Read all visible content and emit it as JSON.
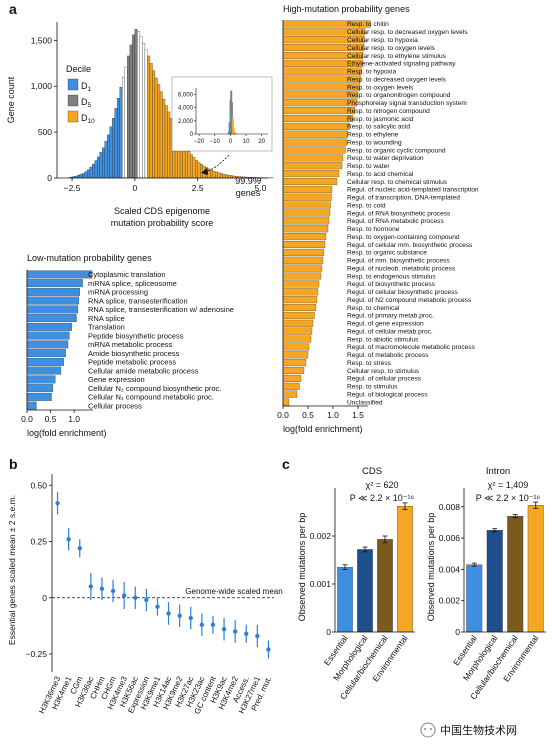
{
  "panel_labels": {
    "a": "a",
    "b": "b",
    "c": "c"
  },
  "watermark": "中国生物技术网",
  "colors": {
    "blue": "#3f8fe0",
    "grey": "#7f7f7f",
    "orange": "#f5a623",
    "darkblue": "#1f4e8c",
    "brown": "#7a5a1e",
    "errorbar": "#2f7fd6"
  },
  "chart_data": [
    {
      "type": "bar",
      "id": "histogram",
      "xlabel": "Scaled CDS epigenome mutation probability score",
      "ylabel": "Gene count",
      "xticks": [
        -2.5,
        0,
        2.5,
        5.0
      ],
      "xtick_labels": [
        "−2.5",
        "0",
        "2.5",
        "5.0"
      ],
      "yticks": [
        0,
        500,
        1000,
        1500
      ],
      "ytick_labels": [
        "0",
        "500",
        "1,000",
        "1,500"
      ],
      "xlim": [
        -3.1,
        5.3
      ],
      "ylim": [
        0,
        1700
      ],
      "bin_width": 0.1,
      "bins_start": -2.6,
      "counts": [
        10,
        15,
        20,
        30,
        40,
        50,
        70,
        90,
        120,
        150,
        190,
        230,
        280,
        330,
        400,
        470,
        560,
        650,
        760,
        870,
        990,
        1100,
        1210,
        1330,
        1450,
        1560,
        1620,
        1600,
        1540,
        1470,
        1400,
        1330,
        1250,
        1170,
        1090,
        1020,
        940,
        860,
        790,
        720,
        650,
        590,
        530,
        470,
        420,
        370,
        330,
        290,
        255,
        225,
        195,
        170,
        150,
        130,
        115,
        100,
        88,
        76,
        66,
        57,
        49,
        42,
        36,
        31,
        26,
        22,
        19,
        16,
        14,
        12,
        10,
        9,
        8,
        7,
        6,
        5,
        4,
        4,
        3,
        3,
        2
      ],
      "legend_title": "Decile",
      "legend_items": [
        "D1",
        "D5",
        "D10"
      ],
      "d1_max": -0.5,
      "d5_range": [
        -0.3,
        0.1
      ],
      "d10_min": 0.5,
      "inset": {
        "xticks": [
          -20,
          -10,
          0,
          10,
          20
        ],
        "xtick_labels": [
          "−20",
          "−10",
          "0",
          "10",
          "20"
        ],
        "yticks": [
          0,
          2000,
          4000,
          6000
        ],
        "ytick_labels": [
          "0",
          "2,000",
          "4,000",
          "6,000"
        ],
        "xlim": [
          -22,
          24
        ],
        "ylim": [
          0,
          7000
        ],
        "values_x": [
          -1.5,
          -1,
          -0.5,
          0,
          0.5,
          1,
          1.5,
          2,
          2.5,
          3
        ],
        "values_y": [
          300,
          1800,
          5200,
          6600,
          4800,
          2400,
          900,
          300,
          120,
          60
        ]
      },
      "annotation": "99.9% genes"
    },
    {
      "type": "bar",
      "id": "high-mutation",
      "orientation": "horizontal",
      "title": "High-mutation probability genes",
      "xlabel": "log(fold enrichment)",
      "xticks": [
        0,
        0.5,
        1.0,
        1.5
      ],
      "xtick_labels": [
        "0.0",
        "0.5",
        "1.0",
        "1.5"
      ],
      "xlim": [
        0,
        1.7
      ],
      "categories": [
        "Resp. to chitin",
        "Cellular resp. to decreased oxygen levels",
        "Cellular resp. to hypoxia",
        "Cellular resp. to oxygen levels",
        "Cellular resp. to ethylene stimulus",
        "Ethylene-activated signaling pathway",
        "Resp. to hypoxia",
        "Resp. to decreased oxygen levels",
        "Resp. to oxygen levels",
        "Resp. to organonitrogen compound",
        "Phosphorelay signal transduction system",
        "Resp. to nitrogen compound",
        "Resp. to jasmonic acid",
        "Resp. to salicylic acid",
        "Resp. to ethylene",
        "Resp. to wounding",
        "Resp. to organic cyclic compound",
        "Resp. to water deprivation",
        "Resp. to water",
        "Resp. to acid chemical",
        "Cellular resp. to chemical stimulus",
        "Regul. of nucleic acid-templated transcription",
        "Regul. of transcription, DNA-templated",
        "Resp. to cold",
        "Regul. of RNA biosynthetic process",
        "Regul. of RNA metabolic process",
        "Resp. to hormone",
        "Resp. to oxygen-containing compound",
        "Regul. of cellular mm. biosynthetic process",
        "Resp. to organic substance",
        "Regul. of mm. biosynthetic process",
        "Regul. of nucleob. metabolic process",
        "Resp. to endogenous stimulus",
        "Regul. of biosynthetic process",
        "Regul. of cellular biosynthetic process",
        "Regul. of N2 compound metabolic process",
        "Resp. to chemical",
        "Regul. of primary metab.proc.",
        "Regul. of gene expression",
        "Regul. of cellular metab.proc.",
        "Resp. to abiotic stimulus",
        "Regul. of macromolecule metabolic process",
        "Regul. of metabolic process",
        "Resp. to stress",
        "Cellular resp. to stimulus",
        "Regul. of cellular process",
        "Resp. to stimulus",
        "Regul. of biological process",
        "Unclassified"
      ],
      "values": [
        1.75,
        1.64,
        1.63,
        1.62,
        1.6,
        1.6,
        1.57,
        1.55,
        1.54,
        1.5,
        1.48,
        1.44,
        1.4,
        1.33,
        1.3,
        1.28,
        1.25,
        1.2,
        1.18,
        1.12,
        1.08,
        0.98,
        0.97,
        0.95,
        0.94,
        0.92,
        0.9,
        0.86,
        0.84,
        0.82,
        0.8,
        0.78,
        0.76,
        0.72,
        0.7,
        0.68,
        0.66,
        0.63,
        0.6,
        0.58,
        0.56,
        0.52,
        0.5,
        0.46,
        0.42,
        0.36,
        0.33,
        0.28,
        0.12
      ]
    },
    {
      "type": "bar",
      "id": "low-mutation",
      "orientation": "horizontal",
      "title": "Low-mutation probability genes",
      "xlabel": "log(fold enrichment)",
      "xticks": [
        0,
        0.5,
        1.0
      ],
      "xtick_labels": [
        "0.0",
        "0.5",
        "1.0"
      ],
      "xlim": [
        0,
        1.4
      ],
      "categories": [
        "Cytoplasmic translation",
        "mRNA splice, spliceosome",
        "mRNA processing",
        "RNA splice, transesterification",
        "RNA splice, transesterification w/ adenosine",
        "RNA splice",
        "Translation",
        "Peptide biosynthetic process",
        "mRNA metabolic process",
        "Amide biosynthetic process",
        "Peptide metabolic process",
        "Cellular amide metabolic process",
        "Gene expression",
        "Cellular N₂ compound biosynthetic proc.",
        "Cellular N₂ compound metabolic proc.",
        "Cellular process"
      ],
      "values": [
        1.38,
        1.18,
        1.12,
        1.1,
        1.08,
        1.05,
        0.95,
        0.9,
        0.87,
        0.82,
        0.78,
        0.72,
        0.6,
        0.55,
        0.52,
        0.2
      ]
    },
    {
      "type": "scatter",
      "id": "essential-genes",
      "ylabel": "Essential genes scaled mean ± 2 s.e.m.",
      "yticks": [
        -0.25,
        0,
        0.25,
        0.5
      ],
      "ytick_labels": [
        "−0.25",
        "0",
        "0.25",
        "0.50"
      ],
      "ylim": [
        -0.33,
        0.55
      ],
      "reference_label": "Genome-wide scaled mean",
      "categories": [
        "H3K36me3",
        "H3K4me1",
        "CGm",
        "H3K36ac",
        "CHHm",
        "CHGm",
        "H3K4me3",
        "H3K56ac",
        "Expression",
        "H3K9me1",
        "H3K14ac",
        "H3K9me2",
        "H3K27ac",
        "H3K23ac",
        "GC content",
        "H3K9ac",
        "H3K4me2",
        "Access.",
        "H3K27me1",
        "Pred. mut."
      ],
      "values": [
        0.42,
        0.26,
        0.22,
        0.05,
        0.04,
        0.03,
        0.01,
        0.0,
        -0.01,
        -0.04,
        -0.07,
        -0.08,
        -0.09,
        -0.12,
        -0.12,
        -0.14,
        -0.15,
        -0.16,
        -0.17,
        -0.23
      ],
      "errors": [
        0.05,
        0.05,
        0.04,
        0.06,
        0.05,
        0.05,
        0.06,
        0.05,
        0.05,
        0.04,
        0.05,
        0.05,
        0.05,
        0.05,
        0.04,
        0.05,
        0.05,
        0.04,
        0.05,
        0.04
      ]
    },
    {
      "type": "bar",
      "id": "cds",
      "title": "CDS",
      "stat_line1": "χ² = 620",
      "stat_line2": "P ≪ 2.2 × 10⁻¹⁶",
      "ylabel": "Observed mutations per bp",
      "yticks": [
        0,
        0.001,
        0.002
      ],
      "ytick_labels": [
        "0",
        "0.001",
        "0.002"
      ],
      "ylim": [
        0,
        0.003
      ],
      "categories": [
        "Essential",
        "Morphological",
        "Cellular/biochemical",
        "Environmental"
      ],
      "values": [
        0.00135,
        0.00172,
        0.00193,
        0.00262
      ],
      "errors": [
        5e-05,
        5e-05,
        7e-05,
        7e-05
      ]
    },
    {
      "type": "bar",
      "id": "intron",
      "title": "Intron",
      "stat_line1": "χ² = 1,409",
      "stat_line2": "P ≪ 2.2 × 10⁻¹⁶",
      "ylabel": "Observed mutations per bp",
      "yticks": [
        0,
        0.002,
        0.004,
        0.006,
        0.008
      ],
      "ytick_labels": [
        "0",
        "0.002",
        "0.004",
        "0.006",
        "0.008"
      ],
      "ylim": [
        0,
        0.0092
      ],
      "categories": [
        "Essential",
        "Morphological",
        "Cellular/biochemical",
        "Environmental"
      ],
      "values": [
        0.0043,
        0.0065,
        0.0074,
        0.0081
      ],
      "errors": [
        0.0001,
        0.0001,
        0.0001,
        0.0002
      ]
    }
  ]
}
